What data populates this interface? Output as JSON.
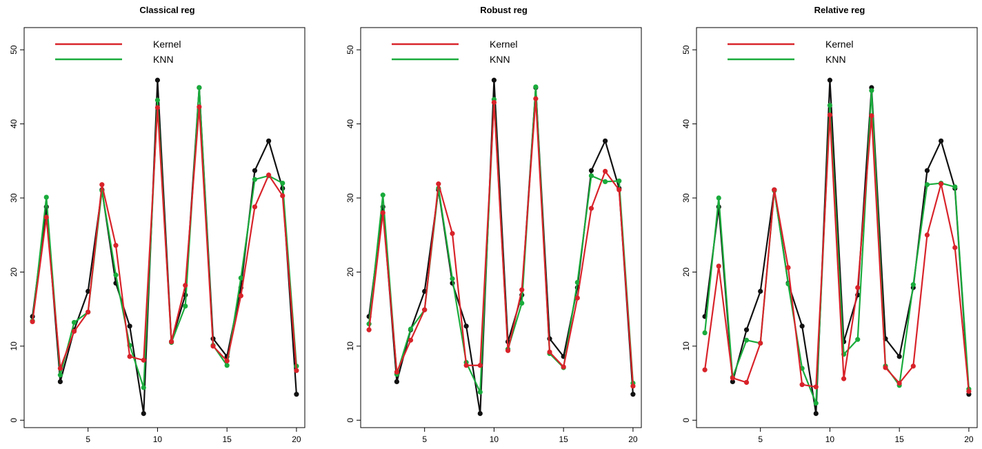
{
  "colors": {
    "observed": "#111111",
    "kernel": "#d8232a",
    "knn": "#1aab3c"
  },
  "chart_data": [
    {
      "type": "line",
      "title": "Classical reg",
      "xlim": [
        0.4,
        20.6
      ],
      "ylim": [
        -1,
        53
      ],
      "x_ticks": [
        5,
        10,
        15,
        20
      ],
      "y_ticks": [
        0,
        10,
        20,
        30,
        40,
        50
      ],
      "legend": [
        "Kernel",
        "KNN"
      ],
      "legend_position": "top-left",
      "x": [
        1,
        2,
        3,
        4,
        5,
        6,
        7,
        8,
        9,
        10,
        11,
        12,
        13,
        14,
        15,
        16,
        17,
        18,
        19,
        20
      ],
      "series": [
        {
          "name": "Observed",
          "color_key": "observed",
          "values": [
            14,
            28.8,
            5.2,
            12.2,
            17.4,
            31.1,
            18.5,
            12.7,
            0.9,
            45.9,
            10.6,
            16.9,
            44.9,
            11.0,
            8.6,
            17.9,
            33.7,
            37.7,
            31.3,
            3.5
          ]
        },
        {
          "name": "KNN",
          "color_key": "knn",
          "values": [
            13.4,
            30.1,
            6.1,
            13.2,
            14.6,
            31.0,
            19.6,
            10.1,
            4.4,
            43.2,
            10.5,
            15.4,
            44.9,
            10.1,
            7.4,
            19.2,
            32.5,
            33.0,
            32.0,
            7.3
          ]
        },
        {
          "name": "Kernel",
          "color_key": "kernel",
          "values": [
            13.3,
            27.4,
            7.0,
            12.0,
            14.6,
            31.8,
            23.6,
            8.6,
            8.1,
            42.2,
            10.6,
            18.2,
            42.3,
            10.0,
            8.0,
            16.8,
            28.8,
            33.1,
            30.3,
            6.7
          ]
        }
      ]
    },
    {
      "type": "line",
      "title": "Robust reg",
      "xlim": [
        0.4,
        20.6
      ],
      "ylim": [
        -1,
        53
      ],
      "x_ticks": [
        5,
        10,
        15,
        20
      ],
      "y_ticks": [
        0,
        10,
        20,
        30,
        40,
        50
      ],
      "legend": [
        "Kernel",
        "KNN"
      ],
      "legend_position": "top-left",
      "x": [
        1,
        2,
        3,
        4,
        5,
        6,
        7,
        8,
        9,
        10,
        11,
        12,
        13,
        14,
        15,
        16,
        17,
        18,
        19,
        20
      ],
      "series": [
        {
          "name": "Observed",
          "color_key": "observed",
          "values": [
            14,
            28.8,
            5.2,
            12.2,
            17.4,
            31.1,
            18.5,
            12.7,
            0.9,
            45.9,
            10.6,
            16.9,
            44.9,
            11.0,
            8.6,
            17.9,
            33.7,
            37.7,
            31.3,
            3.5
          ]
        },
        {
          "name": "KNN",
          "color_key": "knn",
          "values": [
            13.0,
            30.4,
            6.2,
            12.3,
            14.9,
            31.3,
            19.1,
            7.8,
            3.8,
            43.3,
            9.6,
            15.8,
            45.0,
            9.0,
            7.1,
            18.6,
            33.0,
            32.2,
            32.3,
            5.0
          ]
        },
        {
          "name": "Kernel",
          "color_key": "kernel",
          "values": [
            12.2,
            28.0,
            6.5,
            10.8,
            14.9,
            31.9,
            25.2,
            7.4,
            7.4,
            42.9,
            9.4,
            17.6,
            43.4,
            9.2,
            7.2,
            16.5,
            28.6,
            33.6,
            31.1,
            4.6
          ]
        }
      ]
    },
    {
      "type": "line",
      "title": "Relative reg",
      "xlim": [
        0.4,
        20.6
      ],
      "ylim": [
        -1,
        53
      ],
      "x_ticks": [
        5,
        10,
        15,
        20
      ],
      "y_ticks": [
        0,
        10,
        20,
        30,
        40,
        50
      ],
      "legend": [
        "Kernel",
        "KNN"
      ],
      "legend_position": "top-left",
      "x": [
        1,
        2,
        3,
        4,
        5,
        6,
        7,
        8,
        9,
        10,
        11,
        12,
        13,
        14,
        15,
        16,
        17,
        18,
        19,
        20
      ],
      "series": [
        {
          "name": "Observed",
          "color_key": "observed",
          "values": [
            14,
            28.8,
            5.2,
            12.2,
            17.4,
            31.1,
            18.5,
            12.7,
            0.9,
            45.9,
            10.6,
            16.9,
            44.9,
            11.0,
            8.6,
            17.9,
            33.7,
            37.7,
            31.3,
            3.5
          ]
        },
        {
          "name": "KNN",
          "color_key": "knn",
          "values": [
            11.8,
            30.0,
            5.8,
            10.8,
            10.4,
            31.0,
            18.4,
            7.0,
            2.3,
            42.5,
            8.9,
            10.9,
            44.5,
            7.3,
            4.7,
            18.3,
            31.8,
            32.0,
            31.5,
            4.2
          ]
        },
        {
          "name": "Kernel",
          "color_key": "kernel",
          "values": [
            6.8,
            20.8,
            5.7,
            5.1,
            10.4,
            31.1,
            20.6,
            4.8,
            4.5,
            41.2,
            5.6,
            17.9,
            41.1,
            7.1,
            5.0,
            7.3,
            25.0,
            31.9,
            23.3,
            3.9
          ]
        }
      ]
    }
  ]
}
